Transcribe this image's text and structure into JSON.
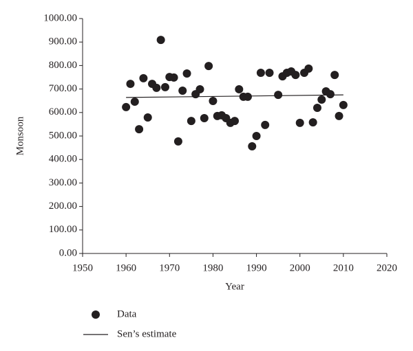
{
  "chart_data": {
    "type": "scatter",
    "x_label": "Year",
    "y_label": "Monsoon",
    "xlim": [
      1950,
      2020
    ],
    "xticks": [
      1950,
      1960,
      1970,
      1980,
      1990,
      2000,
      2010,
      2020
    ],
    "ylim": [
      0,
      1000
    ],
    "yticks": [
      {
        "value": 0,
        "label": "0.00"
      },
      {
        "value": 100,
        "label": "100.00"
      },
      {
        "value": 200,
        "label": "200.00"
      },
      {
        "value": 300,
        "label": "300.00"
      },
      {
        "value": 400,
        "label": "400.00"
      },
      {
        "value": 500,
        "label": "500.00"
      },
      {
        "value": 600,
        "label": "600.00"
      },
      {
        "value": 700,
        "label": "700.00"
      },
      {
        "value": 800,
        "label": "800.00"
      },
      {
        "value": 900,
        "label": "900.00"
      },
      {
        "value": 1000,
        "label": "1000.00"
      }
    ],
    "series": [
      {
        "name": "Data",
        "type": "scatter",
        "color": "#231f20",
        "x": [
          1960,
          1961,
          1962,
          1963,
          1964,
          1965,
          1966,
          1967,
          1968,
          1969,
          1970,
          1971,
          1972,
          1973,
          1974,
          1975,
          1976,
          1977,
          1978,
          1979,
          1980,
          1981,
          1982,
          1983,
          1984,
          1985,
          1986,
          1987,
          1988,
          1989,
          1990,
          1991,
          1992,
          1993,
          1995,
          1996,
          1997,
          1998,
          1999,
          2000,
          2001,
          2002,
          2003,
          2004,
          2005,
          2006,
          2007,
          2008,
          2009,
          2010
        ],
        "values": [
          623,
          722,
          646,
          529,
          746,
          579,
          722,
          705,
          909,
          708,
          751,
          749,
          477,
          693,
          766,
          564,
          678,
          699,
          576,
          798,
          649,
          585,
          588,
          576,
          556,
          564,
          699,
          667,
          667,
          456,
          500,
          769,
          547,
          769,
          675,
          754,
          769,
          775,
          760,
          556,
          769,
          787,
          558,
          620,
          655,
          690,
          678,
          760,
          585,
          632
        ]
      },
      {
        "name": "Sen’s estimate",
        "type": "line",
        "color": "#231f20",
        "x": [
          1960,
          2010
        ],
        "values": [
          664,
          675
        ]
      }
    ]
  }
}
